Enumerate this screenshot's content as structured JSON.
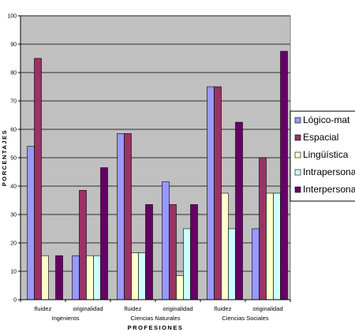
{
  "chart_data": {
    "type": "bar",
    "title": "",
    "xlabel": "PROFESIONES",
    "ylabel": "PORCENTAJES",
    "ylim": [
      0,
      100
    ],
    "yticks": [
      0,
      10,
      20,
      30,
      40,
      50,
      60,
      70,
      80,
      90,
      100
    ],
    "grid": true,
    "legend_position": "right",
    "categories": [
      "fluidez",
      "originalidad",
      "fluidez",
      "originalidad",
      "fluidez",
      "originalidad"
    ],
    "groups": [
      "Ingenieros",
      "Ciencias Naturales",
      "Ciencias Sociales"
    ],
    "series": [
      {
        "name": "Lógico-mat",
        "color": "#9999ff",
        "values": [
          54,
          15.5,
          58.5,
          41.5,
          75,
          25
        ]
      },
      {
        "name": "Espacial",
        "color": "#993366",
        "values": [
          85,
          38.5,
          58.5,
          33.5,
          75,
          50
        ]
      },
      {
        "name": "Lingüística",
        "color": "#ffffcc",
        "values": [
          15.5,
          15.5,
          16.5,
          8.5,
          37.5,
          37.5
        ]
      },
      {
        "name": "Intrapersonal",
        "color": "#ccffff",
        "values": [
          0,
          15.5,
          16.5,
          25,
          25,
          37.5
        ]
      },
      {
        "name": "Interpersonal",
        "color": "#660066",
        "values": [
          15.5,
          46.5,
          33.5,
          33.5,
          62.5,
          87.5
        ]
      }
    ],
    "colors": {
      "plot_background": "#c0c0c0",
      "gridline": "#000000"
    }
  }
}
